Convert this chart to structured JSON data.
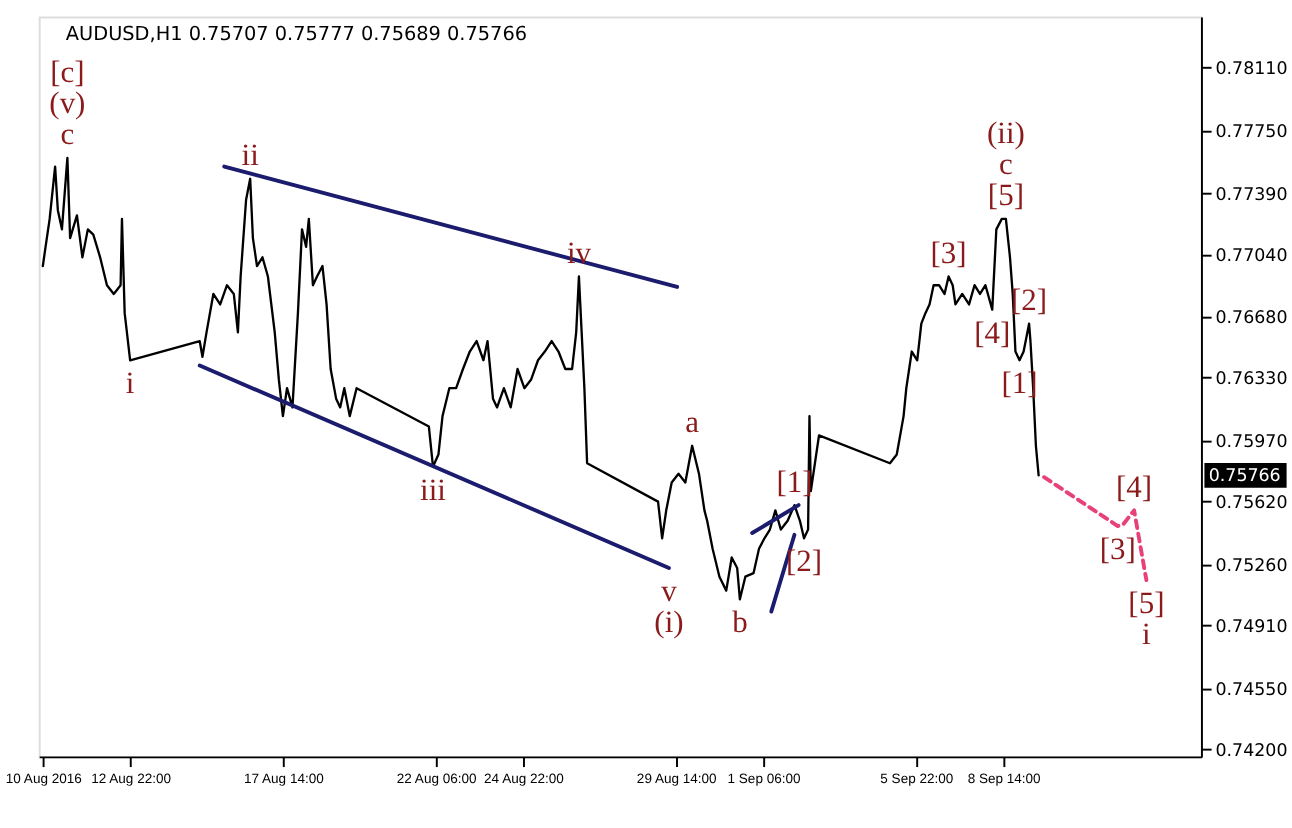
{
  "chart_data": {
    "type": "line",
    "title": "AUDUSD,H1  0.75707 0.75777 0.75689 0.75766",
    "xlim": [
      "2016-08-10T03:00",
      "2016-09-14T15:00"
    ],
    "ylim": [
      0.7416,
      0.784
    ],
    "xticks": [
      {
        "value": "2016-08-10T06:00",
        "label": "10 Aug 2016"
      },
      {
        "value": "2016-08-12T22:00",
        "label": "12 Aug 22:00"
      },
      {
        "value": "2016-08-17T14:00",
        "label": "17 Aug 14:00"
      },
      {
        "value": "2016-08-22T06:00",
        "label": "22 Aug 06:00"
      },
      {
        "value": "2016-08-24T22:00",
        "label": "24 Aug 22:00"
      },
      {
        "value": "2016-08-29T14:00",
        "label": "29 Aug 14:00"
      },
      {
        "value": "2016-09-01T06:00",
        "label": "1 Sep 06:00"
      },
      {
        "value": "2016-09-05T22:00",
        "label": "5 Sep 22:00"
      },
      {
        "value": "2016-09-08T14:00",
        "label": "8 Sep 14:00"
      }
    ],
    "yticks": [
      {
        "value": 0.742,
        "label": "0.74200"
      },
      {
        "value": 0.7455,
        "label": "0.74550"
      },
      {
        "value": 0.7491,
        "label": "0.74910"
      },
      {
        "value": 0.7526,
        "label": "0.75260"
      },
      {
        "value": 0.7562,
        "label": "0.75620"
      },
      {
        "value": 0.7597,
        "label": "0.75970"
      },
      {
        "value": 0.7633,
        "label": "0.76330"
      },
      {
        "value": 0.7668,
        "label": "0.76680"
      },
      {
        "value": 0.7704,
        "label": "0.77040"
      },
      {
        "value": 0.7739,
        "label": "0.77390"
      },
      {
        "value": 0.7775,
        "label": "0.77750"
      },
      {
        "value": 0.7811,
        "label": "0.78110"
      }
    ],
    "grid": false,
    "series": [
      {
        "color": "#000000",
        "line_style": "solid",
        "x": [
          "2016-08-10T06:00",
          "2016-08-10T08:00",
          "2016-08-10T11:00",
          "2016-08-10T15:00",
          "2016-08-10T17:00",
          "2016-08-10T20:00",
          "2016-08-11T00:00",
          "2016-08-11T02:00",
          "2016-08-11T07:00",
          "2016-08-11T11:00",
          "2016-08-11T15:00",
          "2016-08-11T19:00",
          "2016-08-12T00:00",
          "2016-08-12T05:00",
          "2016-08-12T10:00",
          "2016-08-12T15:00",
          "2016-08-12T16:00",
          "2016-08-12T18:00",
          "2016-08-12T22:00",
          "2016-08-15T01:00",
          "2016-08-15T03:00",
          "2016-08-15T06:00",
          "2016-08-15T11:00",
          "2016-08-15T16:00",
          "2016-08-15T21:00",
          "2016-08-16T02:00",
          "2016-08-16T05:00",
          "2016-08-16T07:00",
          "2016-08-16T11:00",
          "2016-08-16T14:00",
          "2016-08-16T16:00",
          "2016-08-16T19:00",
          "2016-08-16T23:00",
          "2016-08-17T03:00",
          "2016-08-17T08:00",
          "2016-08-17T11:00",
          "2016-08-17T14:00",
          "2016-08-17T17:00",
          "2016-08-17T21:00",
          "2016-08-18T01:00",
          "2016-08-18T04:00",
          "2016-08-18T07:00",
          "2016-08-18T09:00",
          "2016-08-18T12:00",
          "2016-08-18T15:00",
          "2016-08-18T19:00",
          "2016-08-18T22:00",
          "2016-08-19T01:00",
          "2016-08-19T05:00",
          "2016-08-19T08:00",
          "2016-08-19T11:00",
          "2016-08-19T15:00",
          "2016-08-19T20:00",
          "2016-08-22T01:00",
          "2016-08-22T04:00",
          "2016-08-22T08:00",
          "2016-08-22T11:00",
          "2016-08-22T16:00",
          "2016-08-22T21:00",
          "2016-08-23T02:00",
          "2016-08-23T07:00",
          "2016-08-23T12:00",
          "2016-08-23T17:00",
          "2016-08-23T20:00",
          "2016-08-24T00:00",
          "2016-08-24T03:00",
          "2016-08-24T08:00",
          "2016-08-24T13:00",
          "2016-08-24T18:00",
          "2016-08-24T23:00",
          "2016-08-25T04:00",
          "2016-08-25T09:00",
          "2016-08-25T14:00",
          "2016-08-25T19:00",
          "2016-08-26T00:00",
          "2016-08-26T05:00",
          "2016-08-26T10:00",
          "2016-08-26T13:00",
          "2016-08-26T15:00",
          "2016-08-26T17:00",
          "2016-08-26T19:00",
          "2016-08-26T21:00",
          "2016-08-29T01:00",
          "2016-08-29T04:00",
          "2016-08-29T07:00",
          "2016-08-29T11:00",
          "2016-08-29T16:00",
          "2016-08-29T21:00",
          "2016-08-30T02:00",
          "2016-08-30T07:00",
          "2016-08-30T11:00",
          "2016-08-30T13:00",
          "2016-08-30T17:00",
          "2016-08-30T22:00",
          "2016-08-31T03:00",
          "2016-08-31T07:00",
          "2016-08-31T11:00",
          "2016-08-31T13:00",
          "2016-08-31T17:00",
          "2016-08-31T23:00",
          "2016-09-01T03:00",
          "2016-09-01T07:00",
          "2016-09-01T11:00",
          "2016-09-01T15:00",
          "2016-09-01T19:00",
          "2016-09-02T00:00",
          "2016-09-02T05:00",
          "2016-09-02T09:00",
          "2016-09-02T12:00",
          "2016-09-02T15:00",
          "2016-09-02T16:00",
          "2016-09-02T17:00",
          "2016-09-02T20:00",
          "2016-09-02T23:00",
          "2016-09-05T03:00",
          "2016-09-05T08:00",
          "2016-09-05T13:00",
          "2016-09-05T15:00",
          "2016-09-05T19:00",
          "2016-09-05T23:00",
          "2016-09-06T02:00",
          "2016-09-06T05:00",
          "2016-09-06T08:00",
          "2016-09-06T11:00",
          "2016-09-06T15:00",
          "2016-09-06T19:00",
          "2016-09-06T22:00",
          "2016-09-07T01:00",
          "2016-09-07T03:00",
          "2016-09-07T08:00",
          "2016-09-07T13:00",
          "2016-09-07T17:00",
          "2016-09-07T21:00",
          "2016-09-08T01:00",
          "2016-09-08T06:00",
          "2016-09-08T09:00",
          "2016-09-08T13:00",
          "2016-09-08T16:00",
          "2016-09-08T19:00",
          "2016-09-08T21:00",
          "2016-09-08T23:00",
          "2016-09-09T02:00",
          "2016-09-09T05:00",
          "2016-09-09T09:00",
          "2016-09-09T10:00",
          "2016-09-09T12:00",
          "2016-09-09T14:00",
          "2016-09-09T16:00"
        ],
        "values": [
          0.7697,
          0.7708,
          0.7724,
          0.7754,
          0.7729,
          0.7718,
          0.7759,
          0.7713,
          0.7726,
          0.7702,
          0.7718,
          0.7715,
          0.7702,
          0.7686,
          0.7681,
          0.7686,
          0.7724,
          0.767,
          0.7643,
          0.7654,
          0.7645,
          0.7659,
          0.7681,
          0.7675,
          0.7686,
          0.7681,
          0.7659,
          0.7691,
          0.7735,
          0.7747,
          0.7713,
          0.7697,
          0.7702,
          0.7691,
          0.7659,
          0.7632,
          0.7611,
          0.7627,
          0.7616,
          0.767,
          0.7718,
          0.7708,
          0.7724,
          0.7686,
          0.7691,
          0.7697,
          0.7675,
          0.7638,
          0.7621,
          0.7616,
          0.7627,
          0.7611,
          0.7627,
          0.7605,
          0.7582,
          0.7589,
          0.7611,
          0.7627,
          0.7627,
          0.7638,
          0.7648,
          0.7654,
          0.7643,
          0.7654,
          0.7621,
          0.7616,
          0.7627,
          0.7616,
          0.7638,
          0.7627,
          0.7632,
          0.7643,
          0.7648,
          0.7654,
          0.7648,
          0.7638,
          0.7638,
          0.7659,
          0.7691,
          0.7659,
          0.7627,
          0.7584,
          0.7562,
          0.7541,
          0.7557,
          0.7573,
          0.7578,
          0.7573,
          0.7594,
          0.7578,
          0.7557,
          0.7551,
          0.7535,
          0.7519,
          0.7511,
          0.753,
          0.7524,
          0.7506,
          0.7519,
          0.7521,
          0.7535,
          0.7541,
          0.7546,
          0.7557,
          0.7546,
          0.7551,
          0.756,
          0.7551,
          0.7541,
          0.7546,
          0.7611,
          0.7568,
          0.7584,
          0.76,
          0.7584,
          0.7589,
          0.7611,
          0.7627,
          0.7648,
          0.7643,
          0.7664,
          0.767,
          0.7675,
          0.7686,
          0.7686,
          0.7681,
          0.7691,
          0.7686,
          0.7675,
          0.7681,
          0.7675,
          0.7686,
          0.7681,
          0.7686,
          0.7672,
          0.7718,
          0.7724,
          0.7724,
          0.7702,
          0.7681,
          0.7648,
          0.7643,
          0.7648,
          0.7664,
          0.7654,
          0.7627,
          0.7594,
          0.7577
        ]
      },
      {
        "color": "#e8407a",
        "line_style": "dashed",
        "x": [
          "2016-09-09T20:00",
          "2016-09-12T02:00",
          "2016-09-12T06:00",
          "2016-09-12T14:00",
          "2016-09-12T23:00"
        ],
        "values": [
          0.7576,
          0.7548,
          0.7549,
          0.7557,
          0.7517
        ]
      },
      {
        "color": "#1c1c6e",
        "line_style": "solid",
        "x": [
          "2016-08-15T19:00",
          "2016-08-29T15:00"
        ],
        "values": [
          0.7754,
          0.7685
        ]
      },
      {
        "color": "#1c1c6e",
        "line_style": "solid",
        "x": [
          "2016-08-15T01:00",
          "2016-08-29T09:00"
        ],
        "values": [
          0.764,
          0.7524
        ]
      },
      {
        "color": "#1c1c6e",
        "line_style": "solid",
        "x": [
          "2016-08-31T22:00",
          "2016-09-02T08:00"
        ],
        "values": [
          0.7544,
          0.756
        ]
      },
      {
        "color": "#1c1c6e",
        "line_style": "solid",
        "x": [
          "2016-09-01T12:00",
          "2016-09-02T05:00"
        ],
        "values": [
          0.7499,
          0.7543
        ]
      }
    ],
    "annotations": [
      "0.75766",
      {
        "text": "[c]",
        "x": "2016-08-11T00:00",
        "y": 0.7759
      },
      {
        "text": "(v)",
        "x": "2016-08-11T00:00",
        "y": 0.7759
      },
      {
        "text": "c",
        "x": "2016-08-11T00:00",
        "y": 0.7759
      },
      {
        "text": "ii",
        "x": "2016-08-16T14:00",
        "y": 0.7747
      },
      {
        "text": "iv",
        "x": "2016-08-26T15:00",
        "y": 0.7691
      },
      {
        "text": "i",
        "x": "2016-08-12T22:00",
        "y": 0.7643
      },
      {
        "text": "iii",
        "x": "2016-08-22T04:00",
        "y": 0.7582
      },
      {
        "text": "v",
        "x": "2016-08-29T09:00",
        "y": 0.7524
      },
      {
        "text": "(i)",
        "x": "2016-08-29T09:00",
        "y": 0.7524
      },
      {
        "text": "a",
        "x": "2016-08-30T02:00",
        "y": 0.7594
      },
      {
        "text": "b",
        "x": "2016-08-31T13:00",
        "y": 0.7506
      },
      {
        "text": "[1]",
        "x": "2016-09-02T05:00",
        "y": 0.756
      },
      {
        "text": "[2]",
        "x": "2016-09-02T12:00",
        "y": 0.7541
      },
      {
        "text": "[3]",
        "x": "2016-09-06T22:00",
        "y": 0.7691
      },
      {
        "text": "[4]",
        "x": "2016-09-08T06:00",
        "y": 0.7672
      },
      {
        "text": "(ii)",
        "x": "2016-09-08T16:00",
        "y": 0.7724
      },
      {
        "text": "c",
        "x": "2016-09-08T16:00",
        "y": 0.7724
      },
      {
        "text": "[5]",
        "x": "2016-09-08T16:00",
        "y": 0.7724
      },
      {
        "text": "[2]",
        "x": "2016-09-09T09:00",
        "y": 0.7664
      },
      {
        "text": "[1]",
        "x": "2016-09-09T02:00",
        "y": 0.7643
      },
      {
        "text": "[3]",
        "x": "2016-09-12T02:00",
        "y": 0.7548
      },
      {
        "text": "[4]",
        "x": "2016-09-12T14:00",
        "y": 0.7557
      },
      {
        "text": "[5]",
        "x": "2016-09-12T23:00",
        "y": 0.7517
      },
      {
        "text": "i",
        "x": "2016-09-12T23:00",
        "y": 0.7517
      }
    ]
  }
}
